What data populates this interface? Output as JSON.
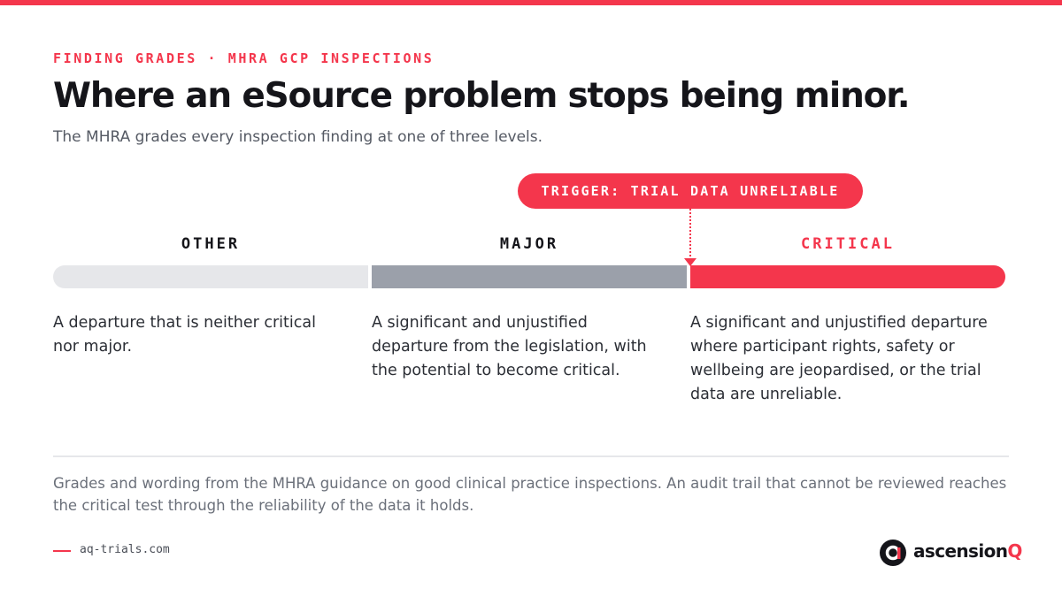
{
  "eyebrow": "FINDING GRADES · MHRA GCP INSPECTIONS",
  "title": "Where an eSource problem stops being minor.",
  "subtitle": "The MHRA grades every inspection finding at one of three levels.",
  "trigger": "TRIGGER: TRIAL DATA UNRELIABLE",
  "grades": [
    {
      "label": "OTHER",
      "description": "A departure that is neither critical nor major."
    },
    {
      "label": "MAJOR",
      "description": "A significant and unjustified departure from the legislation, with the potential to become critical."
    },
    {
      "label": "CRITICAL",
      "description": "A significant and unjustified departure where participant rights, safety or wellbeing are jeopardised, or the trial data are unreliable."
    }
  ],
  "footnote": "Grades and wording from the MHRA guidance on good clinical practice inspections. An audit trail that cannot be reviewed reaches the critical test through the reliability of the data it holds.",
  "footer": {
    "url": "aq-trials.com",
    "brand": "ascension",
    "brand_mark": "Q"
  }
}
